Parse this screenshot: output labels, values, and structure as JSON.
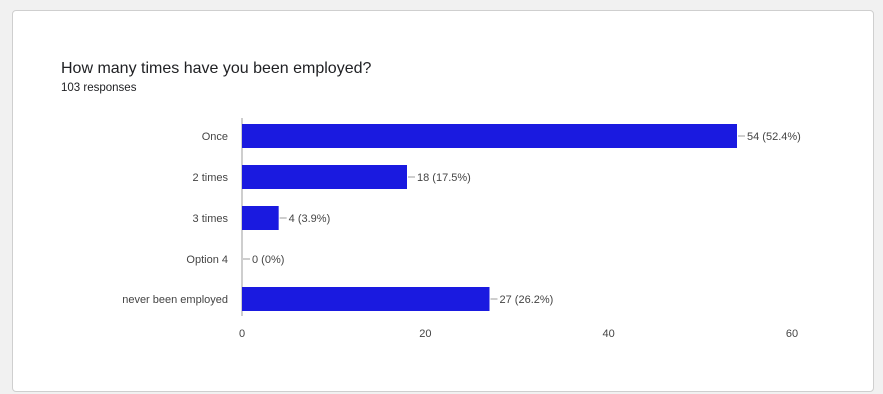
{
  "card": {
    "title": "How many times have you been employed?",
    "subtitle": "103 responses"
  },
  "colors": {
    "bar": "#1a1ae0",
    "text": "#444444",
    "axis": "#9e9e9e"
  },
  "chart_data": {
    "type": "bar",
    "orientation": "horizontal",
    "title": "How many times have you been employed?",
    "subtitle": "103 responses",
    "categories": [
      "Once",
      "2 times",
      "3 times",
      "Option 4",
      "never been employed"
    ],
    "values": [
      54,
      18,
      4,
      0,
      27
    ],
    "data_labels": [
      "54 (52.4%)",
      "18 (17.5%)",
      "4 (3.9%)",
      "0 (0%)",
      "27 (26.2%)"
    ],
    "x_ticks": [
      0,
      20,
      40,
      60
    ],
    "xlim": [
      0,
      60
    ],
    "xlabel": "",
    "ylabel": "",
    "grid": false,
    "legend": "none"
  }
}
